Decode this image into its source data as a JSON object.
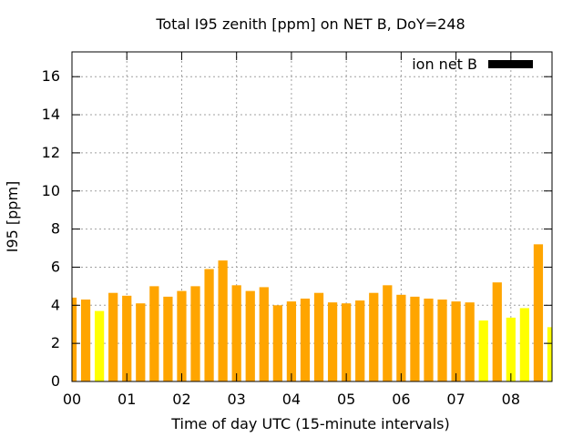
{
  "chart_data": {
    "type": "bar",
    "title": "Total I95 zenith [ppm] on NET B, DoY=248",
    "xlabel": "Time of day UTC (15-minute intervals)",
    "ylabel": "I95 [ppm]",
    "xlim": [
      0,
      8.75
    ],
    "ylim": [
      0,
      17.3
    ],
    "x_ticks": [
      "00",
      "01",
      "02",
      "03",
      "04",
      "05",
      "06",
      "07",
      "08"
    ],
    "y_ticks": [
      "0",
      "2",
      "4",
      "6",
      "8",
      "10",
      "12",
      "14",
      "16"
    ],
    "grid": true,
    "legend_position": "top-right",
    "series": [
      {
        "name": "ion net B",
        "legend_color": "#000000",
        "bar_width_hours": 0.17,
        "x": [
          0.0,
          0.25,
          0.5,
          0.75,
          1.0,
          1.25,
          1.5,
          1.75,
          2.0,
          2.25,
          2.5,
          2.75,
          3.0,
          3.25,
          3.5,
          3.75,
          4.0,
          4.25,
          4.5,
          4.75,
          5.0,
          5.25,
          5.5,
          5.75,
          6.0,
          6.25,
          6.5,
          6.75,
          7.0,
          7.25,
          7.5,
          7.75,
          8.0,
          8.25,
          8.5,
          8.75
        ],
        "values": [
          4.4,
          4.3,
          3.7,
          4.65,
          4.5,
          4.1,
          5.0,
          4.45,
          4.75,
          5.0,
          5.9,
          6.35,
          5.05,
          4.75,
          4.95,
          4.0,
          4.2,
          4.35,
          4.65,
          4.15,
          4.1,
          4.25,
          4.65,
          5.05,
          4.55,
          4.45,
          4.35,
          4.3,
          4.2,
          4.15,
          3.2,
          5.2,
          3.35,
          3.85,
          7.2,
          2.85
        ],
        "colors": [
          "#ffa500",
          "#ffa500",
          "#ffff00",
          "#ffa500",
          "#ffa500",
          "#ffa500",
          "#ffa500",
          "#ffa500",
          "#ffa500",
          "#ffa500",
          "#ffa500",
          "#ffa500",
          "#ffa500",
          "#ffa500",
          "#ffa500",
          "#ffa500",
          "#ffa500",
          "#ffa500",
          "#ffa500",
          "#ffa500",
          "#ffa500",
          "#ffa500",
          "#ffa500",
          "#ffa500",
          "#ffa500",
          "#ffa500",
          "#ffa500",
          "#ffa500",
          "#ffa500",
          "#ffa500",
          "#ffff00",
          "#ffa500",
          "#ffff00",
          "#ffff00",
          "#ffa500",
          "#ffff00"
        ]
      }
    ]
  }
}
